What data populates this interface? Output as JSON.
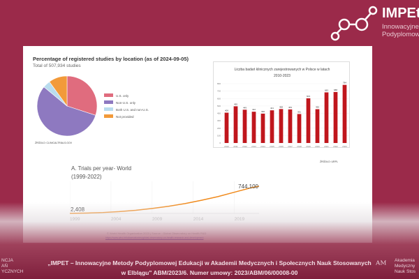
{
  "header": {
    "brand": "IMPEt",
    "brand_line1": "Innowacyjne",
    "brand_line2": "Podyplomow"
  },
  "pie_chart": {
    "title": "Percentage of registered studies by location (as of 2024-09-05)",
    "subtitle": "Total of 507,934 studies",
    "source": "ŹRÓDŁO: CLINICALTRIALS.GOV"
  },
  "bar_chart": {
    "source": "ŹRÓDŁO: URPL"
  },
  "line_chart": {
    "credit": "© World Health Organization 2023 | Source : Global Observatory on Health R&D",
    "link": "https://www.who.int/observatories/global-observatory-on-health-research-and-development"
  },
  "footer": {
    "line1": "„IMPET – Innowacyjne Metody Podyplomowej Edukacji w Akademii Medycznych i Społecznych Nauk Stosowanych",
    "line2": "w Elblągu\" ABM/2023/6. Numer umowy: 2023/ABM/06/00008-00",
    "left_text": [
      "NCJA",
      "AŃ",
      "YCZNYCH"
    ],
    "right_text": [
      "Akademia",
      "Medyczny",
      "Nauk Stos"
    ]
  },
  "chart_data": [
    {
      "type": "pie",
      "title": "Percentage of registered studies by location (as of 2024-09-05)",
      "labels": [
        "U.S. only",
        "Non-U.S. only",
        "Both U.S. and non-U.S.",
        "Not provided"
      ],
      "values": [
        30,
        56,
        4,
        10
      ],
      "colors": [
        "#e06c7e",
        "#8e79c0",
        "#b9dcee",
        "#f29a3a"
      ],
      "legend": "right"
    },
    {
      "type": "bar",
      "title": "Liczba badań klinicznych zarejestrowanych w Polsce w latach 2010-2023",
      "categories": [
        "2010",
        "2011",
        "2012",
        "2013",
        "2014",
        "2015",
        "2016",
        "2017",
        "2018",
        "2019",
        "2020",
        "2021",
        "2022",
        "2023"
      ],
      "values": [
        409,
        495,
        449,
        422,
        396,
        441,
        458,
        453,
        391,
        603,
        456,
        683,
        688,
        784
      ],
      "ylim": [
        0,
        800
      ],
      "yticks": [
        "0",
        "100",
        "200",
        "300",
        "400",
        "500",
        "600",
        "700",
        "800"
      ],
      "color": "#c0161c"
    },
    {
      "type": "line",
      "title": "A. Trials per year- World",
      "subtitle": "(1999-2022)",
      "x": [
        1999,
        2001,
        2003,
        2005,
        2007,
        2009,
        2011,
        2013,
        2015,
        2017,
        2019,
        2021,
        2022
      ],
      "values": [
        2408,
        10000,
        25000,
        50000,
        85000,
        135000,
        195000,
        270000,
        360000,
        460000,
        580000,
        700000,
        744100
      ],
      "start_label": "2,408",
      "end_label": "744,100",
      "xticks": [
        "1999",
        "2004",
        "2009",
        "2014",
        "2019"
      ],
      "xlim": [
        1999,
        2022
      ],
      "ylim": [
        0,
        800000
      ],
      "color": "#f08a1c"
    }
  ]
}
